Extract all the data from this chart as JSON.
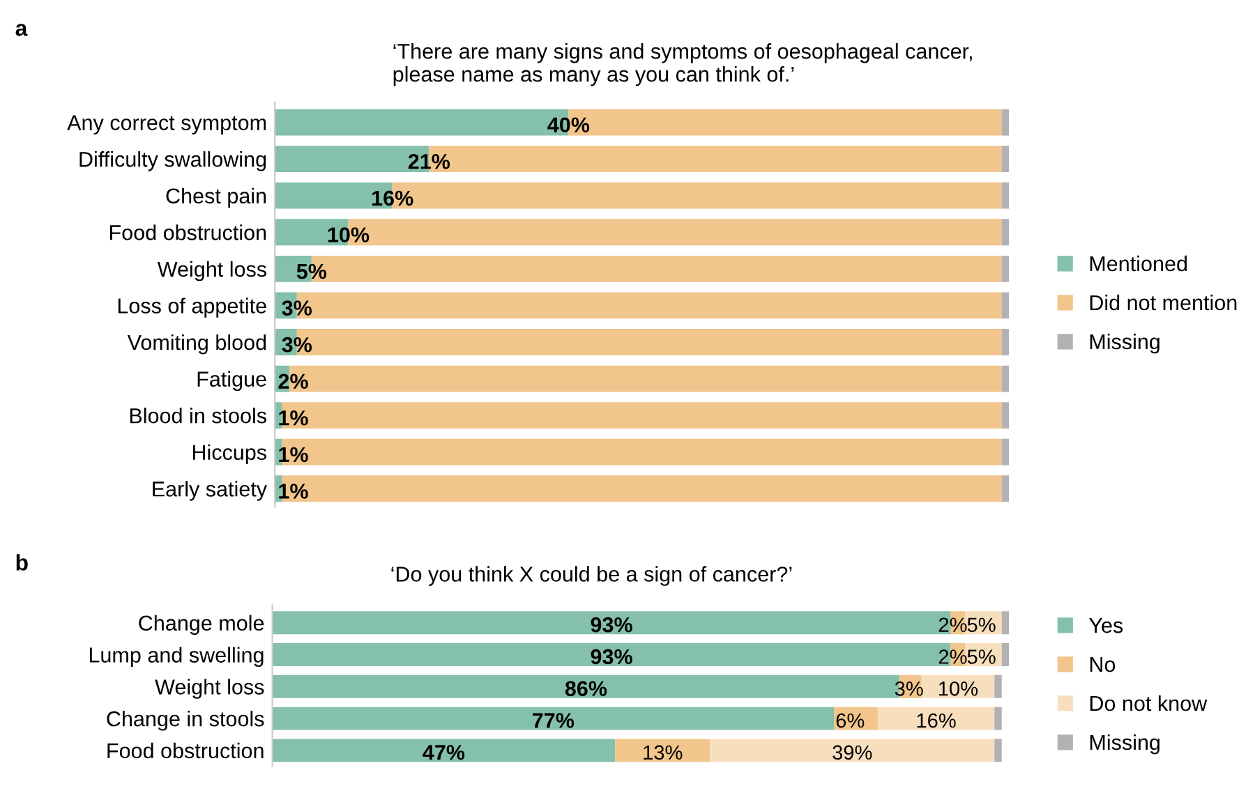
{
  "chart_data": [
    {
      "type": "bar",
      "orientation": "horizontal",
      "stacked": true,
      "title": "‘There are many signs and symptoms of oesophageal cancer,\nplease name as many as you can think of.’",
      "annotations": [
        "a"
      ],
      "legend": "right",
      "categories": [
        "Any correct symptom",
        "Difficulty swallowing",
        "Chest pain",
        "Food obstruction",
        "Weight loss",
        "Loss of appetite",
        "Vomiting blood",
        "Fatigue",
        "Blood in stools",
        "Hiccups",
        "Early satiety"
      ],
      "series": [
        {
          "name": "Mentioned",
          "color": "#84c0aa",
          "values": [
            40,
            21,
            16,
            10,
            5,
            3,
            3,
            2,
            1,
            1,
            1
          ],
          "value_labels": [
            "40%",
            "21%",
            "16%",
            "10%",
            "5%",
            "3%",
            "3%",
            "2%",
            "1%",
            "1%",
            "1%"
          ]
        },
        {
          "name": "Did not mention",
          "color": "#f1c58b",
          "values": [
            59,
            78,
            83,
            89,
            94,
            96,
            96,
            97,
            98,
            98,
            98
          ]
        },
        {
          "name": "Missing",
          "color": "#b3b1b3",
          "values": [
            1,
            1,
            1,
            1,
            1,
            1,
            1,
            1,
            1,
            1,
            1
          ]
        }
      ]
    },
    {
      "type": "bar",
      "orientation": "horizontal",
      "stacked": true,
      "title": "‘Do you think X could be a sign of cancer?’",
      "annotations": [
        "b"
      ],
      "legend": "right",
      "categories": [
        "Change mole",
        "Lump and swelling",
        "Weight loss",
        "Change in stools",
        "Food obstruction"
      ],
      "series": [
        {
          "name": "Yes",
          "color": "#84c0aa",
          "values": [
            93,
            93,
            86,
            77,
            47
          ],
          "value_labels": [
            "93%",
            "93%",
            "86%",
            "77%",
            "47%"
          ]
        },
        {
          "name": "No",
          "color": "#f1c58b",
          "values": [
            2,
            2,
            3,
            6,
            13
          ],
          "value_labels": [
            "2%",
            "2%",
            "3%",
            "6%",
            "13%"
          ]
        },
        {
          "name": "Do not know",
          "color": "#f7dfbe",
          "values": [
            5,
            5,
            10,
            16,
            39
          ],
          "value_labels": [
            "5%",
            "5%",
            "10%",
            "16%",
            "39%"
          ]
        },
        {
          "name": "Missing",
          "color": "#b3b1b3",
          "values": [
            1,
            1,
            1,
            1,
            1
          ]
        }
      ]
    }
  ]
}
